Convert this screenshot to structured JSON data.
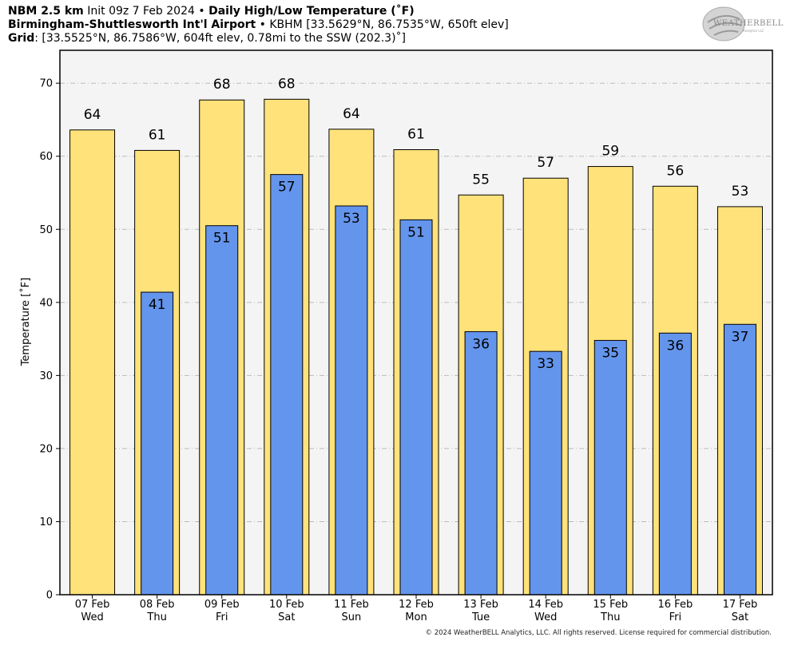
{
  "header": {
    "model": "NBM 2.5 km",
    "init": "Init 09z 7 Feb 2024",
    "bullet": "•",
    "product": "Daily High/Low Temperature (˚F)",
    "station": "Birmingham-Shuttlesworth Int'l Airport",
    "station_code": "KBHM [33.5629°N, 86.7535°W, 650ft elev]",
    "grid_label": "Grid",
    "grid_info": ": [33.5525°N, 86.7586°W, 604ft elev, 0.78mi to the SSW (202.3)˚]"
  },
  "logo": {
    "name": "WEATHERBELL",
    "sub": "Analytics LLC"
  },
  "copyright": "© 2024 WeatherBELL Analytics, LLC. All rights reserved. License required for commercial distribution.",
  "colors": {
    "high": "#FFE27A",
    "low": "#6495ED",
    "plot_bg": "#F4F4F4",
    "grid": "#BBBBBB"
  },
  "chart_data": {
    "type": "bar",
    "ylabel": "Temperature [˚F]",
    "ylim": [
      0,
      74.5
    ],
    "yticks": [
      0,
      10,
      20,
      30,
      40,
      50,
      60,
      70
    ],
    "grid": true,
    "categories": [
      "07 Feb",
      "08 Feb",
      "09 Feb",
      "10 Feb",
      "11 Feb",
      "12 Feb",
      "13 Feb",
      "14 Feb",
      "15 Feb",
      "16 Feb",
      "17 Feb"
    ],
    "days": [
      "Wed",
      "Thu",
      "Fri",
      "Sat",
      "Sun",
      "Mon",
      "Tue",
      "Wed",
      "Thu",
      "Fri",
      "Sat"
    ],
    "series": [
      {
        "values": [
          63.6,
          60.8,
          67.7,
          67.8,
          63.7,
          60.9,
          54.7,
          57.0,
          58.6,
          55.9,
          53.1
        ],
        "labels": [
          "64",
          "61",
          "68",
          "68",
          "64",
          "61",
          "55",
          "57",
          "59",
          "56",
          "53"
        ]
      },
      {
        "values": [
          null,
          41.4,
          50.5,
          57.5,
          53.2,
          51.3,
          36.0,
          33.3,
          34.8,
          35.8,
          37.0
        ],
        "labels": [
          null,
          "41",
          "51",
          "57",
          "53",
          "51",
          "36",
          "33",
          "35",
          "36",
          "37"
        ]
      }
    ]
  }
}
